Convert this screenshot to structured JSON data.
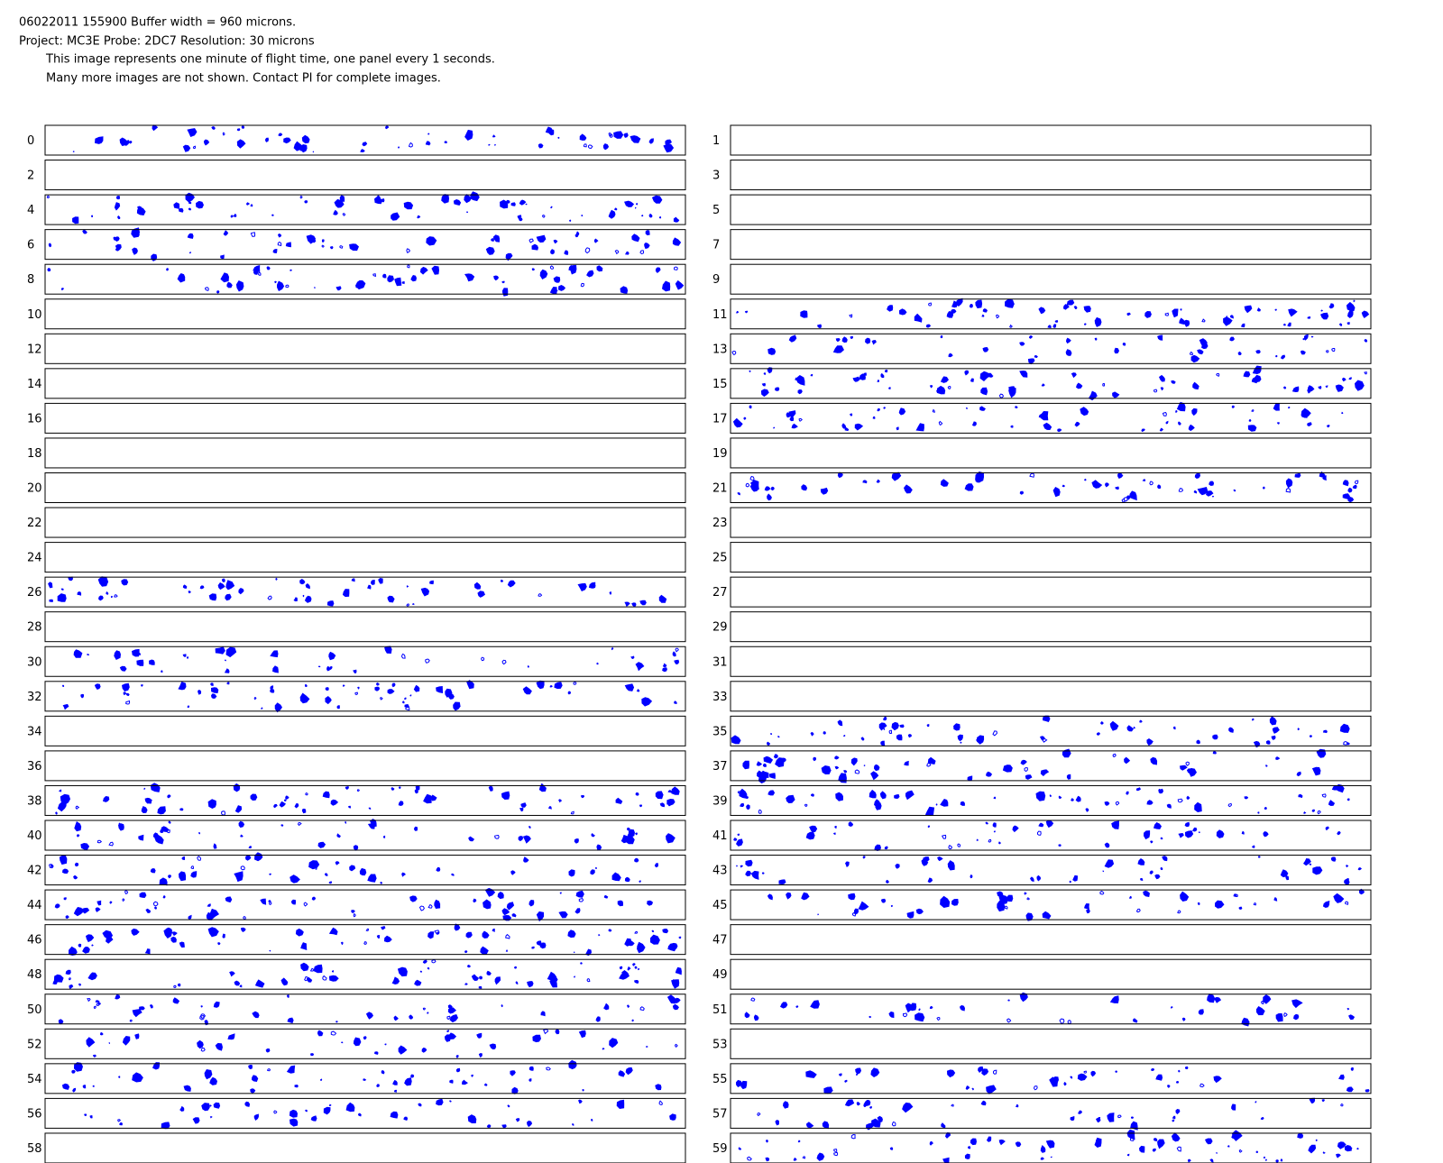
{
  "header": {
    "lines": [
      "06022011 155900  Buffer width = 960 microns.",
      "Project: MC3E   Probe: 2DC7    Resolution: 30 microns",
      "This image represents one minute of flight time, one panel every 1 seconds.",
      "Many more images are not shown.  Contact PI for complete images."
    ]
  },
  "particle_color": "#0000ff",
  "panels": [
    {
      "label": "0",
      "particles": true
    },
    {
      "label": "1",
      "particles": false
    },
    {
      "label": "2",
      "particles": false
    },
    {
      "label": "3",
      "particles": false
    },
    {
      "label": "4",
      "particles": true
    },
    {
      "label": "5",
      "particles": false
    },
    {
      "label": "6",
      "particles": true
    },
    {
      "label": "7",
      "particles": false
    },
    {
      "label": "8",
      "particles": true
    },
    {
      "label": "9",
      "particles": false
    },
    {
      "label": "10",
      "particles": false
    },
    {
      "label": "11",
      "particles": true
    },
    {
      "label": "12",
      "particles": false
    },
    {
      "label": "13",
      "particles": true
    },
    {
      "label": "14",
      "particles": false
    },
    {
      "label": "15",
      "particles": true
    },
    {
      "label": "16",
      "particles": false
    },
    {
      "label": "17",
      "particles": true
    },
    {
      "label": "18",
      "particles": false
    },
    {
      "label": "19",
      "particles": false
    },
    {
      "label": "20",
      "particles": false
    },
    {
      "label": "21",
      "particles": true
    },
    {
      "label": "22",
      "particles": false
    },
    {
      "label": "23",
      "particles": false
    },
    {
      "label": "24",
      "particles": false
    },
    {
      "label": "25",
      "particles": false
    },
    {
      "label": "26",
      "particles": true
    },
    {
      "label": "27",
      "particles": false
    },
    {
      "label": "28",
      "particles": false
    },
    {
      "label": "29",
      "particles": false
    },
    {
      "label": "30",
      "particles": true
    },
    {
      "label": "31",
      "particles": false
    },
    {
      "label": "32",
      "particles": true
    },
    {
      "label": "33",
      "particles": false
    },
    {
      "label": "34",
      "particles": false
    },
    {
      "label": "35",
      "particles": true
    },
    {
      "label": "36",
      "particles": false
    },
    {
      "label": "37",
      "particles": true
    },
    {
      "label": "38",
      "particles": true
    },
    {
      "label": "39",
      "particles": true
    },
    {
      "label": "40",
      "particles": true
    },
    {
      "label": "41",
      "particles": true
    },
    {
      "label": "42",
      "particles": true
    },
    {
      "label": "43",
      "particles": true
    },
    {
      "label": "44",
      "particles": true
    },
    {
      "label": "45",
      "particles": true
    },
    {
      "label": "46",
      "particles": true
    },
    {
      "label": "47",
      "particles": false
    },
    {
      "label": "48",
      "particles": true
    },
    {
      "label": "49",
      "particles": false
    },
    {
      "label": "50",
      "particles": true
    },
    {
      "label": "51",
      "particles": true
    },
    {
      "label": "52",
      "particles": true
    },
    {
      "label": "53",
      "particles": false
    },
    {
      "label": "54",
      "particles": true
    },
    {
      "label": "55",
      "particles": true
    },
    {
      "label": "56",
      "particles": true
    },
    {
      "label": "57",
      "particles": true
    },
    {
      "label": "58",
      "particles": false
    },
    {
      "label": "59",
      "particles": true
    }
  ]
}
